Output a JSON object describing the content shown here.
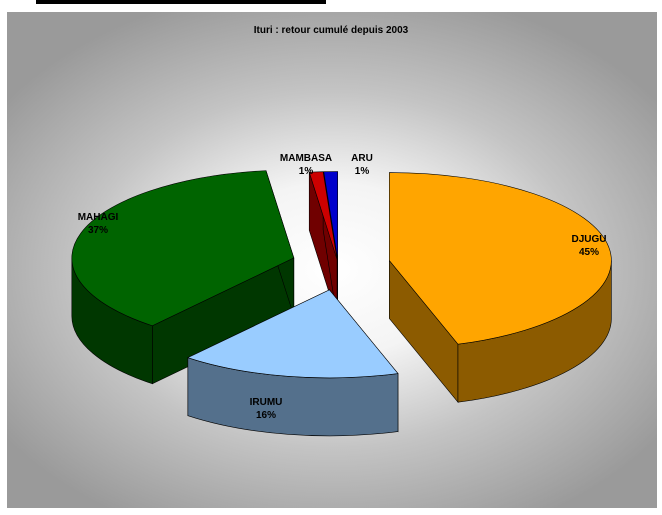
{
  "chart_data": {
    "type": "pie",
    "title": "Ituri : retour cumulé depuis 2003",
    "slices": [
      {
        "label": "DJUGU",
        "value": 45,
        "value_label": "45%",
        "color": "#ffa500"
      },
      {
        "label": "IRUMU",
        "value": 16,
        "value_label": "16%",
        "color": "#99ccff"
      },
      {
        "label": "MAHAGI",
        "value": 37,
        "value_label": "37%",
        "color": "#006400"
      },
      {
        "label": "MAMBASA",
        "value": 1,
        "value_label": "1%",
        "color": "#cc0000"
      },
      {
        "label": "ARU",
        "value": 1,
        "value_label": "1%",
        "color": "#0000cc"
      }
    ],
    "exploded": true,
    "style_3d": true,
    "legend": "none"
  }
}
